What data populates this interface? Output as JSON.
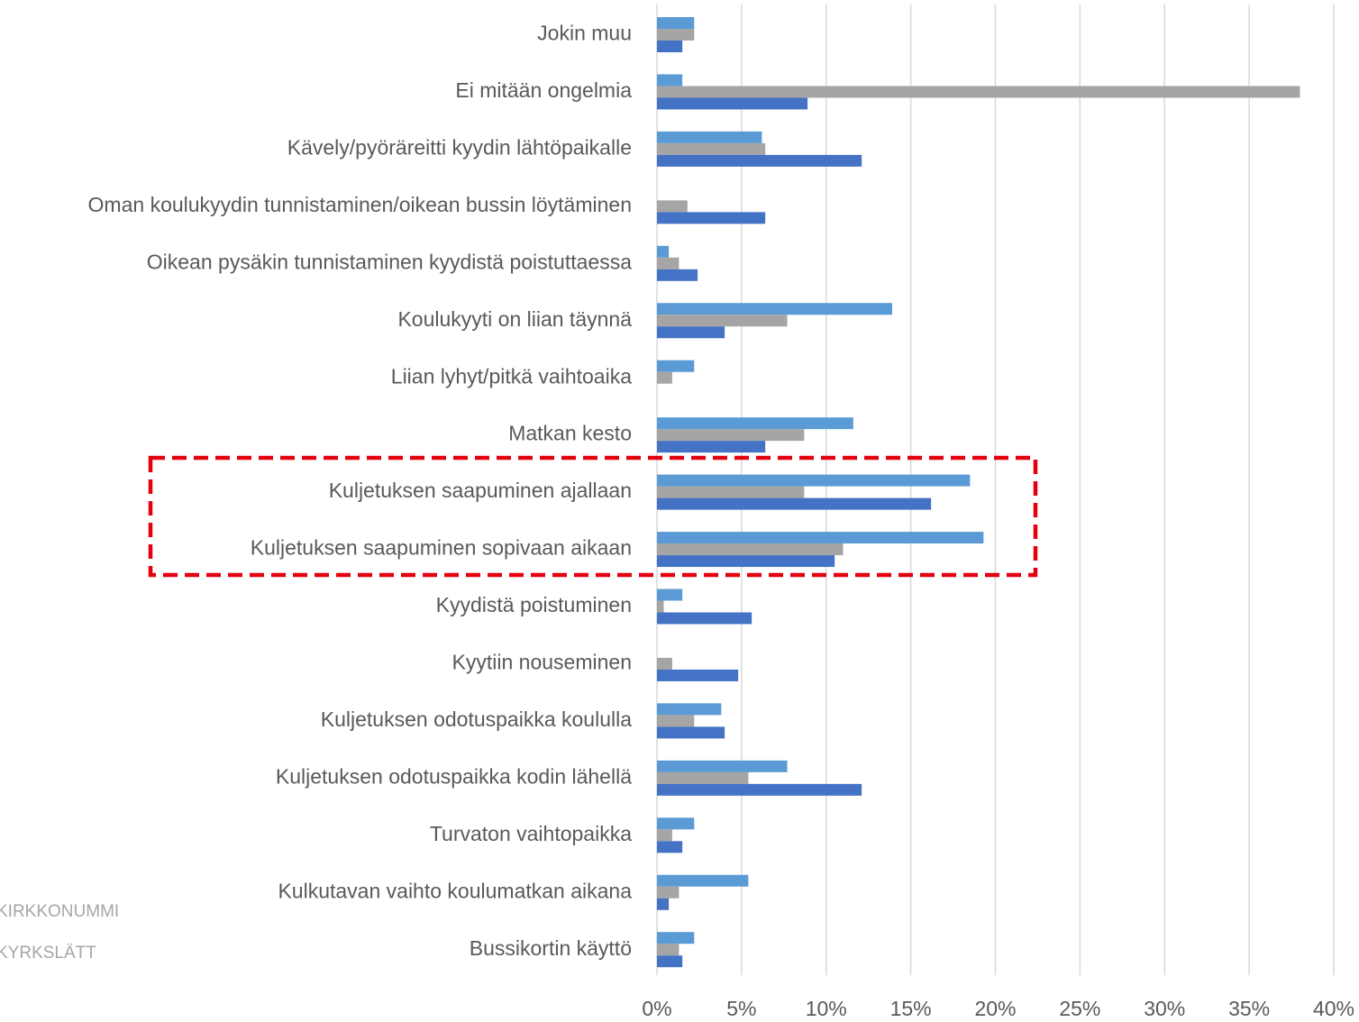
{
  "chart_data": {
    "type": "bar",
    "orientation": "horizontal",
    "grid": true,
    "categories": [
      "Jokin muu",
      "Ei mitään ongelmia",
      "Kävely/pyöräreitti kyydin lähtöpaikalle",
      "Oman koulukyydin tunnistaminen/oikean bussin löytäminen",
      "Oikean pysäkin tunnistaminen kyydistä poistuttaessa",
      "Koulukyyti on liian täynnä",
      "Liian lyhyt/pitkä vaihtoaika",
      "Matkan kesto",
      "Kuljetuksen saapuminen ajallaan",
      "Kuljetuksen saapuminen sopivaan aikaan",
      "Kyydistä poistuminen",
      "Kyytiin nouseminen",
      "Kuljetuksen odotuspaikka koululla",
      "Kuljetuksen odotuspaikka kodin lähellä",
      "Turvaton vaihtopaikka",
      "Kulkutavan vaihto koulumatkan aikana",
      "Bussikortin käyttö"
    ],
    "series": [
      {
        "color": "#5b9bd5",
        "values": [
          2.2,
          1.5,
          6.2,
          0,
          0.7,
          13.9,
          2.2,
          11.6,
          18.5,
          19.3,
          1.5,
          0,
          3.8,
          7.7,
          2.2,
          5.4,
          2.2
        ]
      },
      {
        "color": "#a5a5a5",
        "values": [
          2.2,
          38.0,
          6.4,
          1.8,
          1.3,
          7.7,
          0.9,
          8.7,
          8.7,
          11.0,
          0.4,
          0.9,
          2.2,
          5.4,
          0.9,
          1.3,
          1.3
        ]
      },
      {
        "color": "#4472c4",
        "values": [
          1.5,
          8.9,
          12.1,
          6.4,
          2.4,
          4.0,
          0,
          6.4,
          16.2,
          10.5,
          5.6,
          4.8,
          4.0,
          12.1,
          1.5,
          0.7,
          1.5
        ]
      }
    ],
    "xlim": [
      0,
      40
    ],
    "xticks": [
      {
        "value": 0,
        "label": "0%"
      },
      {
        "value": 5,
        "label": "5%"
      },
      {
        "value": 10,
        "label": "10%"
      },
      {
        "value": 15,
        "label": "15%"
      },
      {
        "value": 20,
        "label": "20%"
      },
      {
        "value": 25,
        "label": "25%"
      },
      {
        "value": 30,
        "label": "30%"
      },
      {
        "value": 35,
        "label": "35%"
      },
      {
        "value": 40,
        "label": "40%"
      }
    ]
  },
  "logo": {
    "line1": "KIRKKONUMMI",
    "line2": "KYRKSLÄTT"
  }
}
